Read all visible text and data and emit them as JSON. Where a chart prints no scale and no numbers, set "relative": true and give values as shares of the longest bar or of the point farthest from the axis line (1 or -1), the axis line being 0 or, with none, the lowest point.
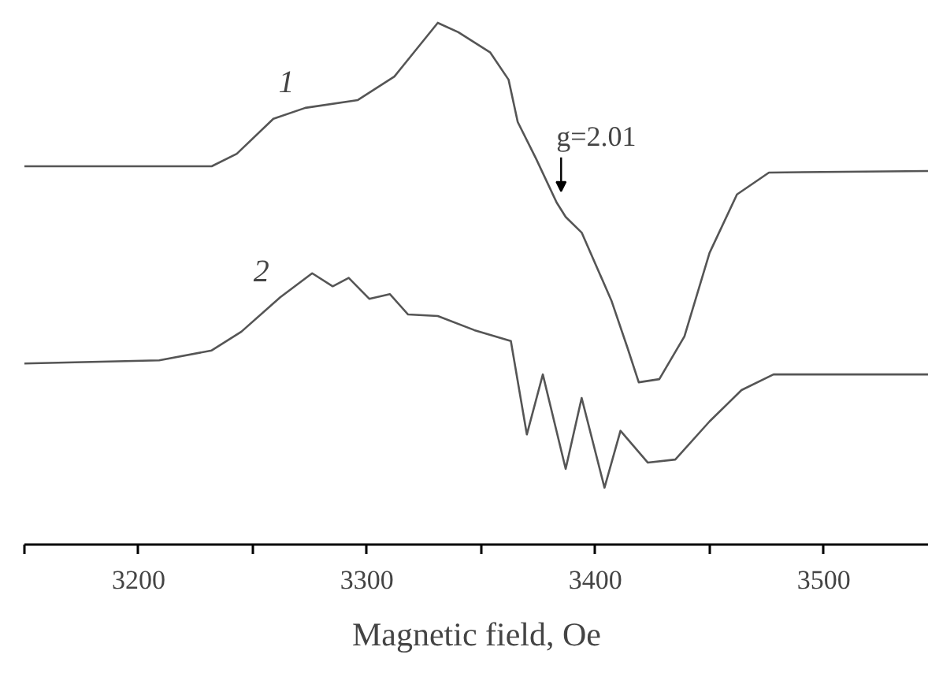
{
  "chart_data": {
    "type": "line",
    "relative": true,
    "xlabel": "Magnetic field, Oe",
    "xlim": [
      3150,
      3546
    ],
    "xticks": [
      {
        "value": 3150,
        "label": null
      },
      3200,
      {
        "value": 3250,
        "label": null
      },
      3300,
      {
        "value": 3350,
        "label": null
      },
      3400,
      {
        "value": 3450,
        "label": null
      },
      3500
    ],
    "grid": false,
    "marker": "none",
    "line_style": "solid",
    "annotations": [
      {
        "text": "g=2.01",
        "x": 3385,
        "y": 0.642
      }
    ],
    "series": [
      {
        "name": "1",
        "color": "#555555",
        "x": [
          3150,
          3232,
          3243,
          3259,
          3273,
          3296,
          3312,
          3331,
          3340,
          3354,
          3362,
          3366,
          3374,
          3383,
          3387,
          3394,
          3407,
          3414,
          3419,
          3428,
          3439,
          3450,
          3462,
          3476,
          3546
        ],
        "values": [
          0.725,
          0.725,
          0.749,
          0.816,
          0.837,
          0.852,
          0.897,
          1.0,
          0.982,
          0.943,
          0.891,
          0.81,
          0.74,
          0.656,
          0.628,
          0.598,
          0.468,
          0.378,
          0.311,
          0.317,
          0.399,
          0.559,
          0.671,
          0.713,
          0.716
        ]
      },
      {
        "name": "2",
        "color": "#555555",
        "x": [
          3150,
          3209,
          3232,
          3245,
          3262,
          3276,
          3285,
          3292,
          3301,
          3310,
          3318,
          3331,
          3347,
          3363,
          3370,
          3377,
          3387,
          3394,
          3404,
          3411,
          3423,
          3435,
          3450,
          3464,
          3478,
          3546
        ],
        "values": [
          0.347,
          0.353,
          0.372,
          0.408,
          0.474,
          0.52,
          0.495,
          0.511,
          0.471,
          0.48,
          0.441,
          0.438,
          0.411,
          0.39,
          0.211,
          0.326,
          0.145,
          0.281,
          0.109,
          0.218,
          0.157,
          0.163,
          0.236,
          0.296,
          0.326,
          0.326
        ]
      }
    ]
  }
}
